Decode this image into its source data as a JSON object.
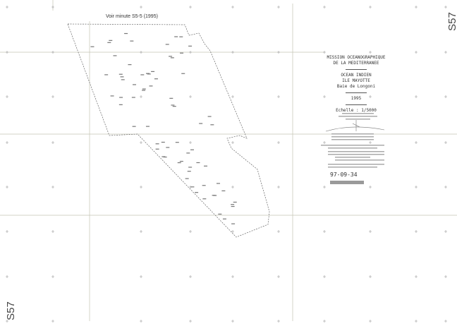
{
  "sheet_code": "S57",
  "adjacent_note": "Voir minute S5-5 (1995)",
  "title_block": {
    "mission_line1": "MISSION OCEANOGRAPHIQUE",
    "mission_line2": "DE LA MEDITERRANEE",
    "region1": "OCEAN INDIEN",
    "region2": "ILE MAYOTTE",
    "region3": "Baie de Longoni",
    "year": "1995",
    "scale": "Echelle : 1/5000"
  },
  "date_stamp": "97-09-34",
  "colors": {
    "lines": "#b8b8a8",
    "survey_boundary": "#555555",
    "text": "#333333"
  }
}
